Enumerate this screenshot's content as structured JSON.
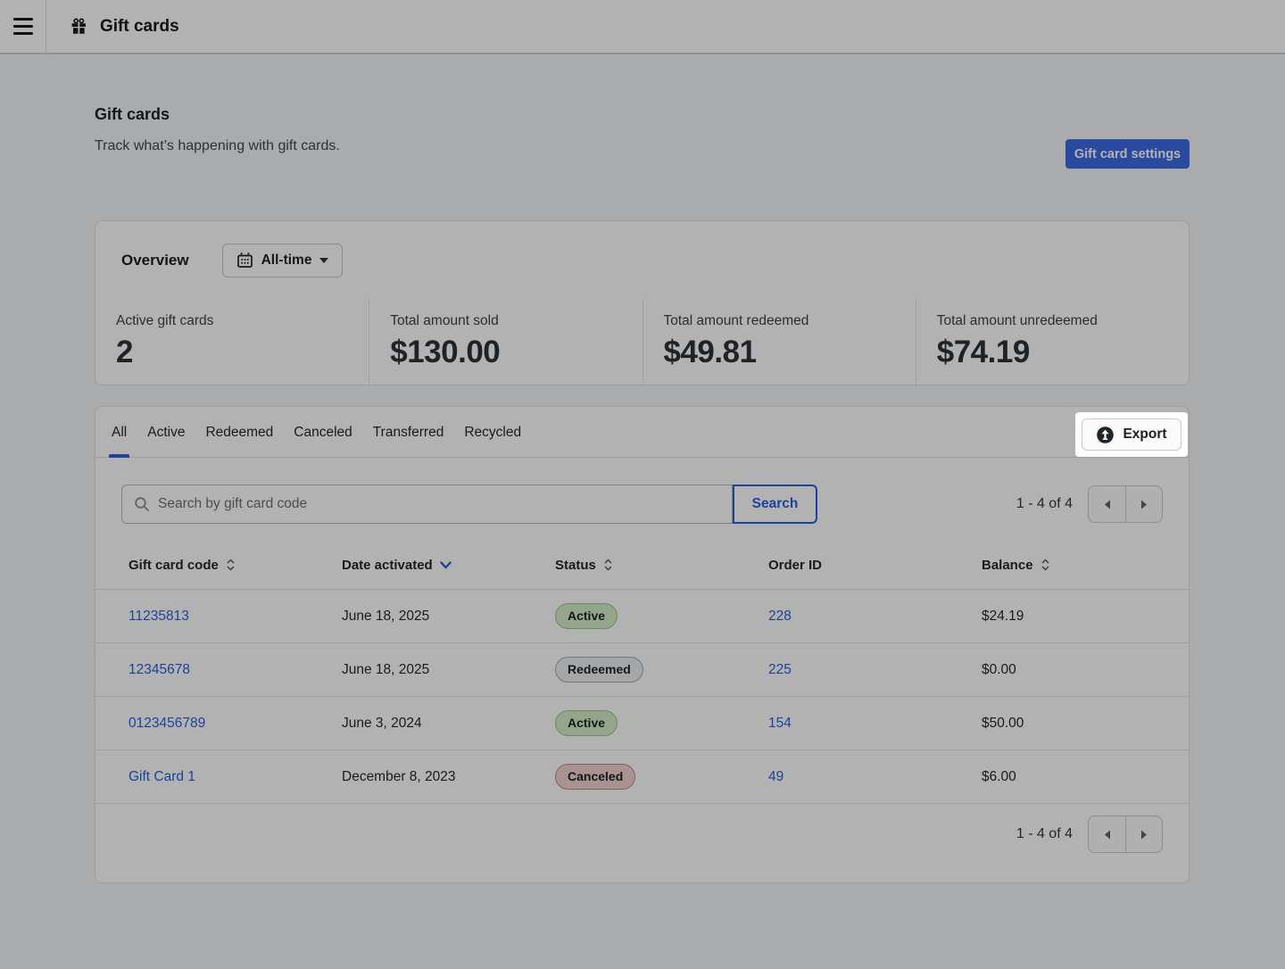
{
  "topbar": {
    "title": "Gift cards"
  },
  "page": {
    "title": "Gift cards",
    "subtitle": "Track what’s happening with gift cards.",
    "settings_button_label": "Gift card settings"
  },
  "overview": {
    "title": "Overview",
    "date_filter_label": "All-time",
    "stats": [
      {
        "label": "Active gift cards",
        "value": "2"
      },
      {
        "label": "Total amount sold",
        "value": "$130.00"
      },
      {
        "label": "Total amount redeemed",
        "value": "$49.81"
      },
      {
        "label": "Total amount unredeemed",
        "value": "$74.19"
      }
    ]
  },
  "table_card": {
    "tabs": [
      {
        "label": "All",
        "active": true
      },
      {
        "label": "Active",
        "active": false
      },
      {
        "label": "Redeemed",
        "active": false
      },
      {
        "label": "Canceled",
        "active": false
      },
      {
        "label": "Transferred",
        "active": false
      },
      {
        "label": "Recycled",
        "active": false
      }
    ],
    "export_button_label": "Export",
    "search": {
      "placeholder": "Search by gift card code",
      "button_label": "Search"
    },
    "pagination_label": "1 - 4 of 4",
    "columns": [
      {
        "label": "Gift card code",
        "sort": "both"
      },
      {
        "label": "Date activated",
        "sort": "desc"
      },
      {
        "label": "Status",
        "sort": "both"
      },
      {
        "label": "Order ID",
        "sort": "none"
      },
      {
        "label": "Balance",
        "sort": "both"
      }
    ],
    "rows": [
      {
        "code": "11235813",
        "date": "June 18, 2025",
        "status": "Active",
        "order_id": "228",
        "balance": "$24.19"
      },
      {
        "code": "12345678",
        "date": "June 18, 2025",
        "status": "Redeemed",
        "order_id": "225",
        "balance": "$0.00"
      },
      {
        "code": "0123456789",
        "date": "June 3, 2024",
        "status": "Active",
        "order_id": "154",
        "balance": "$50.00"
      },
      {
        "code": "Gift Card 1",
        "date": "December 8, 2023",
        "status": "Canceled",
        "order_id": "49",
        "balance": "$6.00"
      }
    ]
  },
  "colors": {
    "accent_blue": "#2a5fdc",
    "button_blue": "#3b6be4",
    "status_active_bg": "#d5edc9",
    "status_active_border": "#94c98c",
    "status_redeemed_bg": "#eceef0",
    "status_redeemed_border": "#a8abae",
    "status_canceled_bg": "#f3d3d1",
    "status_canceled_border": "#c9867f",
    "dim_overlay": "rgba(0,0,0,0.30)",
    "spotlight_bg": "#ffffff"
  }
}
